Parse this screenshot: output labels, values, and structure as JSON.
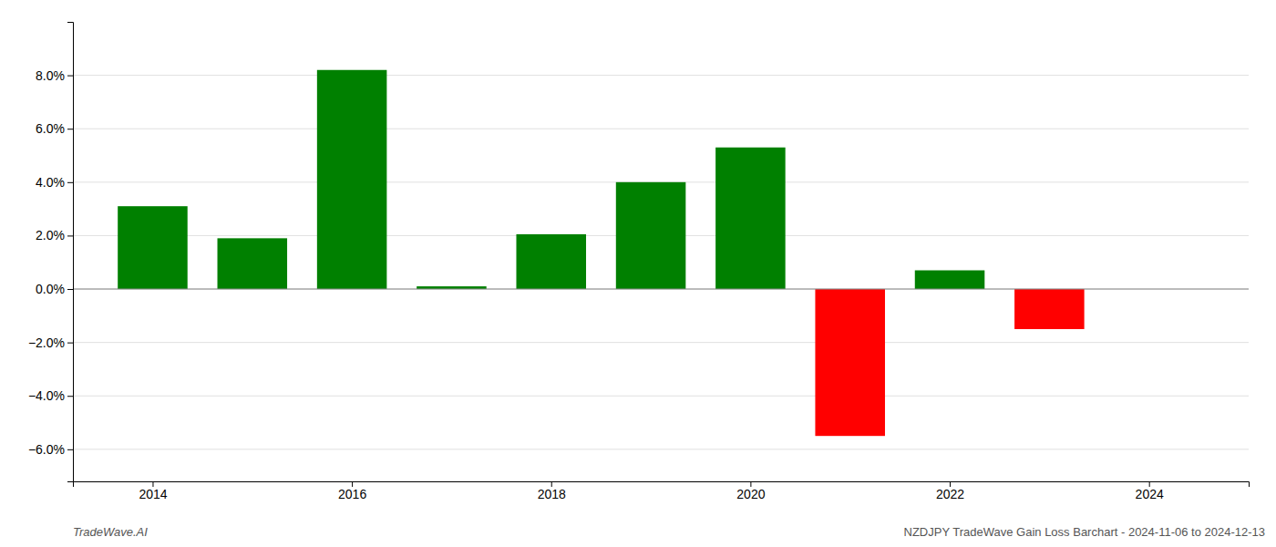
{
  "chart_data": {
    "type": "bar",
    "x": [
      2014,
      2015,
      2016,
      2017,
      2018,
      2019,
      2020,
      2021,
      2022,
      2023
    ],
    "values": [
      0.031,
      0.019,
      0.082,
      0.001,
      0.0205,
      0.04,
      0.053,
      -0.055,
      0.007,
      -0.015
    ],
    "colors": [
      "#008000",
      "#008000",
      "#008000",
      "#008000",
      "#008000",
      "#008000",
      "#008000",
      "#ff0000",
      "#008000",
      "#ff0000"
    ],
    "xlim": [
      2013.2,
      2025.0
    ],
    "xticks": [
      2014,
      2016,
      2018,
      2020,
      2022,
      2024
    ],
    "ylim": [
      -0.072,
      0.1
    ],
    "yticks": [
      {
        "value": -0.06,
        "label": "−6.0%"
      },
      {
        "value": -0.04,
        "label": "−4.0%"
      },
      {
        "value": -0.02,
        "label": "−2.0%"
      },
      {
        "value": 0.0,
        "label": "0.0%"
      },
      {
        "value": 0.02,
        "label": "2.0%"
      },
      {
        "value": 0.04,
        "label": "4.0%"
      },
      {
        "value": 0.06,
        "label": "6.0%"
      },
      {
        "value": 0.08,
        "label": "8.0%"
      }
    ],
    "grid": true,
    "annotations": [
      "TradeWave.AI",
      "NZDJPY TradeWave Gain Loss Barchart - 2024-11-06 to 2024-12-13"
    ]
  }
}
